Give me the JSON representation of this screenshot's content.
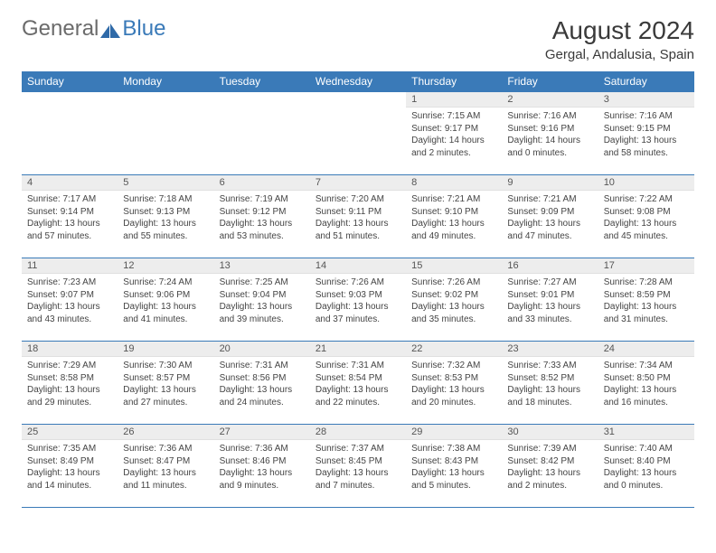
{
  "brand": {
    "general": "General",
    "blue": "Blue"
  },
  "title": "August 2024",
  "location": "Gergal, Andalusia, Spain",
  "colors": {
    "header_bg": "#3a7ab8",
    "header_text": "#ffffff",
    "daynum_bg": "#ededed",
    "border": "#3a7ab8",
    "body_bg": "#ffffff",
    "text": "#444444",
    "brand_gray": "#6b6b6b",
    "brand_blue": "#3a7ab8"
  },
  "weekdays": [
    "Sunday",
    "Monday",
    "Tuesday",
    "Wednesday",
    "Thursday",
    "Friday",
    "Saturday"
  ],
  "weeks": [
    [
      {
        "empty": true
      },
      {
        "empty": true
      },
      {
        "empty": true
      },
      {
        "empty": true
      },
      {
        "n": "1",
        "sr": "7:15 AM",
        "ss": "9:17 PM",
        "dl": "14 hours and 2 minutes."
      },
      {
        "n": "2",
        "sr": "7:16 AM",
        "ss": "9:16 PM",
        "dl": "14 hours and 0 minutes."
      },
      {
        "n": "3",
        "sr": "7:16 AM",
        "ss": "9:15 PM",
        "dl": "13 hours and 58 minutes."
      }
    ],
    [
      {
        "n": "4",
        "sr": "7:17 AM",
        "ss": "9:14 PM",
        "dl": "13 hours and 57 minutes."
      },
      {
        "n": "5",
        "sr": "7:18 AM",
        "ss": "9:13 PM",
        "dl": "13 hours and 55 minutes."
      },
      {
        "n": "6",
        "sr": "7:19 AM",
        "ss": "9:12 PM",
        "dl": "13 hours and 53 minutes."
      },
      {
        "n": "7",
        "sr": "7:20 AM",
        "ss": "9:11 PM",
        "dl": "13 hours and 51 minutes."
      },
      {
        "n": "8",
        "sr": "7:21 AM",
        "ss": "9:10 PM",
        "dl": "13 hours and 49 minutes."
      },
      {
        "n": "9",
        "sr": "7:21 AM",
        "ss": "9:09 PM",
        "dl": "13 hours and 47 minutes."
      },
      {
        "n": "10",
        "sr": "7:22 AM",
        "ss": "9:08 PM",
        "dl": "13 hours and 45 minutes."
      }
    ],
    [
      {
        "n": "11",
        "sr": "7:23 AM",
        "ss": "9:07 PM",
        "dl": "13 hours and 43 minutes."
      },
      {
        "n": "12",
        "sr": "7:24 AM",
        "ss": "9:06 PM",
        "dl": "13 hours and 41 minutes."
      },
      {
        "n": "13",
        "sr": "7:25 AM",
        "ss": "9:04 PM",
        "dl": "13 hours and 39 minutes."
      },
      {
        "n": "14",
        "sr": "7:26 AM",
        "ss": "9:03 PM",
        "dl": "13 hours and 37 minutes."
      },
      {
        "n": "15",
        "sr": "7:26 AM",
        "ss": "9:02 PM",
        "dl": "13 hours and 35 minutes."
      },
      {
        "n": "16",
        "sr": "7:27 AM",
        "ss": "9:01 PM",
        "dl": "13 hours and 33 minutes."
      },
      {
        "n": "17",
        "sr": "7:28 AM",
        "ss": "8:59 PM",
        "dl": "13 hours and 31 minutes."
      }
    ],
    [
      {
        "n": "18",
        "sr": "7:29 AM",
        "ss": "8:58 PM",
        "dl": "13 hours and 29 minutes."
      },
      {
        "n": "19",
        "sr": "7:30 AM",
        "ss": "8:57 PM",
        "dl": "13 hours and 27 minutes."
      },
      {
        "n": "20",
        "sr": "7:31 AM",
        "ss": "8:56 PM",
        "dl": "13 hours and 24 minutes."
      },
      {
        "n": "21",
        "sr": "7:31 AM",
        "ss": "8:54 PM",
        "dl": "13 hours and 22 minutes."
      },
      {
        "n": "22",
        "sr": "7:32 AM",
        "ss": "8:53 PM",
        "dl": "13 hours and 20 minutes."
      },
      {
        "n": "23",
        "sr": "7:33 AM",
        "ss": "8:52 PM",
        "dl": "13 hours and 18 minutes."
      },
      {
        "n": "24",
        "sr": "7:34 AM",
        "ss": "8:50 PM",
        "dl": "13 hours and 16 minutes."
      }
    ],
    [
      {
        "n": "25",
        "sr": "7:35 AM",
        "ss": "8:49 PM",
        "dl": "13 hours and 14 minutes."
      },
      {
        "n": "26",
        "sr": "7:36 AM",
        "ss": "8:47 PM",
        "dl": "13 hours and 11 minutes."
      },
      {
        "n": "27",
        "sr": "7:36 AM",
        "ss": "8:46 PM",
        "dl": "13 hours and 9 minutes."
      },
      {
        "n": "28",
        "sr": "7:37 AM",
        "ss": "8:45 PM",
        "dl": "13 hours and 7 minutes."
      },
      {
        "n": "29",
        "sr": "7:38 AM",
        "ss": "8:43 PM",
        "dl": "13 hours and 5 minutes."
      },
      {
        "n": "30",
        "sr": "7:39 AM",
        "ss": "8:42 PM",
        "dl": "13 hours and 2 minutes."
      },
      {
        "n": "31",
        "sr": "7:40 AM",
        "ss": "8:40 PM",
        "dl": "13 hours and 0 minutes."
      }
    ]
  ],
  "labels": {
    "sunrise": "Sunrise: ",
    "sunset": "Sunset: ",
    "daylight": "Daylight: "
  }
}
